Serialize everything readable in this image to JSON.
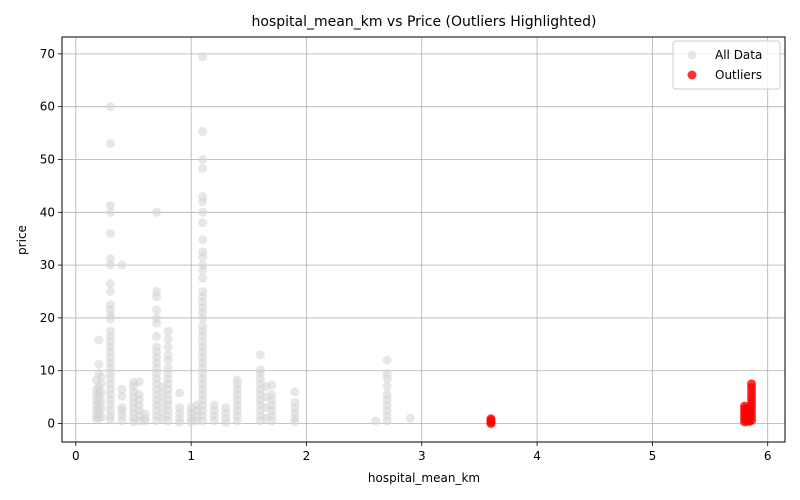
{
  "chart_data": {
    "type": "scatter",
    "title": "hospital_mean_km vs Price (Outliers Highlighted)",
    "xlabel": "hospital_mean_km",
    "ylabel": "price",
    "xlim": [
      -0.12,
      6.15
    ],
    "ylim": [
      -3.5,
      73.2
    ],
    "xticks": [
      0,
      1,
      2,
      3,
      4,
      5,
      6
    ],
    "yticks": [
      0,
      10,
      20,
      30,
      40,
      50,
      60,
      70
    ],
    "grid": true,
    "legend_position": "top-right",
    "series": [
      {
        "name": "All Data",
        "color": "#d3d3d3",
        "opacity": 0.55,
        "points": [
          [
            0.18,
            0.8
          ],
          [
            0.18,
            1.5
          ],
          [
            0.18,
            2.5
          ],
          [
            0.18,
            3.5
          ],
          [
            0.18,
            4.5
          ],
          [
            0.18,
            5.5
          ],
          [
            0.18,
            6.5
          ],
          [
            0.18,
            8.2
          ],
          [
            0.2,
            1.0
          ],
          [
            0.2,
            2.0
          ],
          [
            0.2,
            3.0
          ],
          [
            0.2,
            4.0
          ],
          [
            0.2,
            5.2
          ],
          [
            0.2,
            6.0
          ],
          [
            0.2,
            7.0
          ],
          [
            0.2,
            9.5
          ],
          [
            0.2,
            11.2
          ],
          [
            0.2,
            15.8
          ],
          [
            0.22,
            1.2
          ],
          [
            0.22,
            2.8
          ],
          [
            0.22,
            4.2
          ],
          [
            0.22,
            5.8
          ],
          [
            0.22,
            7.5
          ],
          [
            0.22,
            8.8
          ],
          [
            0.3,
            0.8
          ],
          [
            0.3,
            1.5
          ],
          [
            0.3,
            2.5
          ],
          [
            0.3,
            3.5
          ],
          [
            0.3,
            4.5
          ],
          [
            0.3,
            5.5
          ],
          [
            0.3,
            6.5
          ],
          [
            0.3,
            7.5
          ],
          [
            0.3,
            8.5
          ],
          [
            0.3,
            9.5
          ],
          [
            0.3,
            10.5
          ],
          [
            0.3,
            11.5
          ],
          [
            0.3,
            12.5
          ],
          [
            0.3,
            13.5
          ],
          [
            0.3,
            14.5
          ],
          [
            0.3,
            15.5
          ],
          [
            0.3,
            16.5
          ],
          [
            0.3,
            17.5
          ],
          [
            0.3,
            19.8
          ],
          [
            0.3,
            20.5
          ],
          [
            0.3,
            21.5
          ],
          [
            0.3,
            22.5
          ],
          [
            0.3,
            25.0
          ],
          [
            0.3,
            26.5
          ],
          [
            0.3,
            30.0
          ],
          [
            0.3,
            31.2
          ],
          [
            0.3,
            36.0
          ],
          [
            0.3,
            40.0
          ],
          [
            0.3,
            41.3
          ],
          [
            0.3,
            53.0
          ],
          [
            0.3,
            60.0
          ],
          [
            0.4,
            0.5
          ],
          [
            0.4,
            1.5
          ],
          [
            0.4,
            2.5
          ],
          [
            0.4,
            3.0
          ],
          [
            0.4,
            5.2
          ],
          [
            0.4,
            6.5
          ],
          [
            0.4,
            30.0
          ],
          [
            0.5,
            0.3
          ],
          [
            0.5,
            1.0
          ],
          [
            0.5,
            2.0
          ],
          [
            0.5,
            3.0
          ],
          [
            0.5,
            4.0
          ],
          [
            0.5,
            5.0
          ],
          [
            0.5,
            6.0
          ],
          [
            0.5,
            7.0
          ],
          [
            0.5,
            7.8
          ],
          [
            0.55,
            0.5
          ],
          [
            0.55,
            1.5
          ],
          [
            0.55,
            2.5
          ],
          [
            0.55,
            3.5
          ],
          [
            0.55,
            4.5
          ],
          [
            0.55,
            5.5
          ],
          [
            0.55,
            7.9
          ],
          [
            0.6,
            0.5
          ],
          [
            0.6,
            1.0
          ],
          [
            0.6,
            1.8
          ],
          [
            0.7,
            0.5
          ],
          [
            0.7,
            1.5
          ],
          [
            0.7,
            2.5
          ],
          [
            0.7,
            3.5
          ],
          [
            0.7,
            4.5
          ],
          [
            0.7,
            5.5
          ],
          [
            0.7,
            6.5
          ],
          [
            0.7,
            7.5
          ],
          [
            0.7,
            8.5
          ],
          [
            0.7,
            9.5
          ],
          [
            0.7,
            10.5
          ],
          [
            0.7,
            11.5
          ],
          [
            0.7,
            12.5
          ],
          [
            0.7,
            13.5
          ],
          [
            0.7,
            14.5
          ],
          [
            0.7,
            16.5
          ],
          [
            0.7,
            19.0
          ],
          [
            0.7,
            20.0
          ],
          [
            0.7,
            21.5
          ],
          [
            0.7,
            24.0
          ],
          [
            0.7,
            25.0
          ],
          [
            0.7,
            40.0
          ],
          [
            0.75,
            1.0
          ],
          [
            0.75,
            2.5
          ],
          [
            0.75,
            4.0
          ],
          [
            0.75,
            5.5
          ],
          [
            0.75,
            7.0
          ],
          [
            0.8,
            0.5
          ],
          [
            0.8,
            1.5
          ],
          [
            0.8,
            2.5
          ],
          [
            0.8,
            3.5
          ],
          [
            0.8,
            4.5
          ],
          [
            0.8,
            5.5
          ],
          [
            0.8,
            6.5
          ],
          [
            0.8,
            7.5
          ],
          [
            0.8,
            8.5
          ],
          [
            0.8,
            9.5
          ],
          [
            0.8,
            10.5
          ],
          [
            0.8,
            12.0
          ],
          [
            0.8,
            13.0
          ],
          [
            0.8,
            14.5
          ],
          [
            0.8,
            16.0
          ],
          [
            0.8,
            17.5
          ],
          [
            0.9,
            0.3
          ],
          [
            0.9,
            1.0
          ],
          [
            0.9,
            2.0
          ],
          [
            0.9,
            3.0
          ],
          [
            0.9,
            5.8
          ],
          [
            1.0,
            0.3
          ],
          [
            1.0,
            1.0
          ],
          [
            1.0,
            2.0
          ],
          [
            1.0,
            3.0
          ],
          [
            1.05,
            0.5
          ],
          [
            1.05,
            1.5
          ],
          [
            1.05,
            2.5
          ],
          [
            1.05,
            3.5
          ],
          [
            1.1,
            0.5
          ],
          [
            1.1,
            1.5
          ],
          [
            1.1,
            2.5
          ],
          [
            1.1,
            3.5
          ],
          [
            1.1,
            4.5
          ],
          [
            1.1,
            5.5
          ],
          [
            1.1,
            6.5
          ],
          [
            1.1,
            7.5
          ],
          [
            1.1,
            8.5
          ],
          [
            1.1,
            9.5
          ],
          [
            1.1,
            10.5
          ],
          [
            1.1,
            11.5
          ],
          [
            1.1,
            12.5
          ],
          [
            1.1,
            13.5
          ],
          [
            1.1,
            14.5
          ],
          [
            1.1,
            15.5
          ],
          [
            1.1,
            16.5
          ],
          [
            1.1,
            17.5
          ],
          [
            1.1,
            18.5
          ],
          [
            1.1,
            20.0
          ],
          [
            1.1,
            21.0
          ],
          [
            1.1,
            22.0
          ],
          [
            1.1,
            23.0
          ],
          [
            1.1,
            24.0
          ],
          [
            1.1,
            25.0
          ],
          [
            1.1,
            27.5
          ],
          [
            1.1,
            29.0
          ],
          [
            1.1,
            30.0
          ],
          [
            1.1,
            31.5
          ],
          [
            1.1,
            32.5
          ],
          [
            1.1,
            34.8
          ],
          [
            1.1,
            38.0
          ],
          [
            1.1,
            40.0
          ],
          [
            1.1,
            42.0
          ],
          [
            1.1,
            43.0
          ],
          [
            1.1,
            48.3
          ],
          [
            1.1,
            50.0
          ],
          [
            1.1,
            55.3
          ],
          [
            1.1,
            69.5
          ],
          [
            1.2,
            0.5
          ],
          [
            1.2,
            1.5
          ],
          [
            1.2,
            2.5
          ],
          [
            1.2,
            3.5
          ],
          [
            1.3,
            0.2
          ],
          [
            1.3,
            1.0
          ],
          [
            1.3,
            2.0
          ],
          [
            1.3,
            3.0
          ],
          [
            1.4,
            0.5
          ],
          [
            1.4,
            1.5
          ],
          [
            1.4,
            2.5
          ],
          [
            1.4,
            3.5
          ],
          [
            1.4,
            4.5
          ],
          [
            1.4,
            5.5
          ],
          [
            1.4,
            6.5
          ],
          [
            1.4,
            7.5
          ],
          [
            1.4,
            8.3
          ],
          [
            1.6,
            0.5
          ],
          [
            1.6,
            1.5
          ],
          [
            1.6,
            2.5
          ],
          [
            1.6,
            3.5
          ],
          [
            1.6,
            4.5
          ],
          [
            1.6,
            5.5
          ],
          [
            1.6,
            6.5
          ],
          [
            1.6,
            7.5
          ],
          [
            1.6,
            8.5
          ],
          [
            1.6,
            9.5
          ],
          [
            1.6,
            10.2
          ],
          [
            1.6,
            13.0
          ],
          [
            1.65,
            1.0
          ],
          [
            1.65,
            3.0
          ],
          [
            1.65,
            5.0
          ],
          [
            1.65,
            7.0
          ],
          [
            1.7,
            0.5
          ],
          [
            1.7,
            1.5
          ],
          [
            1.7,
            2.5
          ],
          [
            1.7,
            3.5
          ],
          [
            1.7,
            4.5
          ],
          [
            1.7,
            5.5
          ],
          [
            1.7,
            7.3
          ],
          [
            1.9,
            0.3
          ],
          [
            1.9,
            1.0
          ],
          [
            1.9,
            2.0
          ],
          [
            1.9,
            3.0
          ],
          [
            1.9,
            4.0
          ],
          [
            1.9,
            6.0
          ],
          [
            2.6,
            0.5
          ],
          [
            2.7,
            0.5
          ],
          [
            2.7,
            1.5
          ],
          [
            2.7,
            2.5
          ],
          [
            2.7,
            3.5
          ],
          [
            2.7,
            4.5
          ],
          [
            2.7,
            5.5
          ],
          [
            2.7,
            7.0
          ],
          [
            2.7,
            8.5
          ],
          [
            2.7,
            9.5
          ],
          [
            2.7,
            12.0
          ],
          [
            2.9,
            1.0
          ]
        ]
      },
      {
        "name": "Outliers",
        "color": "#ff0000",
        "opacity": 0.8,
        "points": [
          [
            3.6,
            0.0
          ],
          [
            3.6,
            0.3
          ],
          [
            3.6,
            0.6
          ],
          [
            3.6,
            0.9
          ],
          [
            5.8,
            0.3
          ],
          [
            5.8,
            0.8
          ],
          [
            5.8,
            1.3
          ],
          [
            5.8,
            1.8
          ],
          [
            5.8,
            2.3
          ],
          [
            5.8,
            2.8
          ],
          [
            5.8,
            3.3
          ],
          [
            5.82,
            0.5
          ],
          [
            5.82,
            1.2
          ],
          [
            5.82,
            2.0
          ],
          [
            5.82,
            2.8
          ],
          [
            5.84,
            0.4
          ],
          [
            5.84,
            1.0
          ],
          [
            5.84,
            1.6
          ],
          [
            5.84,
            2.2
          ],
          [
            5.84,
            3.0
          ],
          [
            5.86,
            0.6
          ],
          [
            5.86,
            1.4
          ],
          [
            5.86,
            2.2
          ],
          [
            5.86,
            3.0
          ],
          [
            5.86,
            3.8
          ],
          [
            5.86,
            4.5
          ],
          [
            5.86,
            5.2
          ],
          [
            5.86,
            6.0
          ],
          [
            5.86,
            6.8
          ],
          [
            5.86,
            7.5
          ]
        ]
      }
    ]
  }
}
